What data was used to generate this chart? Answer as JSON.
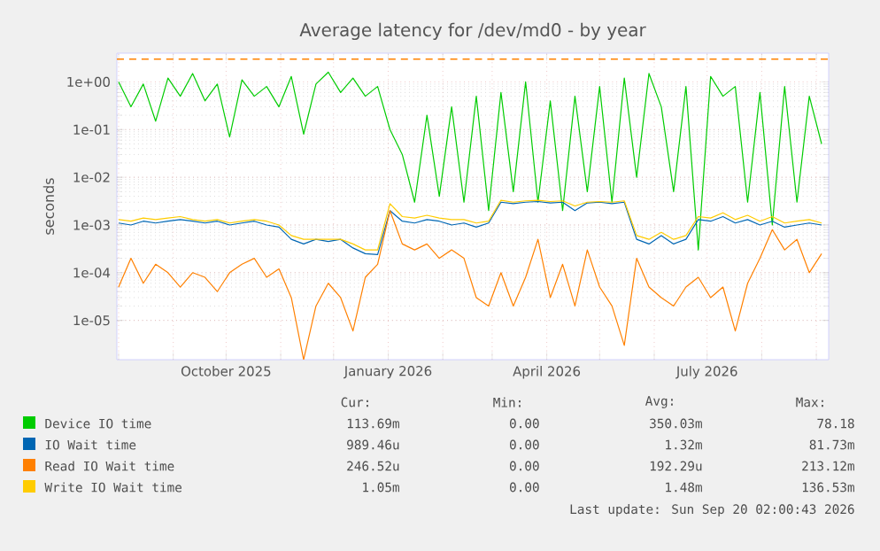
{
  "chart_data": {
    "type": "line",
    "title": "Average latency for /dev/md0 - by year",
    "ylabel": "seconds",
    "x": [
      "2025-08-01",
      "2025-08-08",
      "2025-08-15",
      "2025-08-22",
      "2025-08-29",
      "2025-09-05",
      "2025-09-12",
      "2025-09-19",
      "2025-09-26",
      "2025-10-03",
      "2025-10-10",
      "2025-10-17",
      "2025-10-24",
      "2025-10-31",
      "2025-11-07",
      "2025-11-14",
      "2025-11-21",
      "2025-11-28",
      "2025-12-05",
      "2025-12-12",
      "2025-12-19",
      "2025-12-26",
      "2026-01-02",
      "2026-01-09",
      "2026-01-16",
      "2026-01-23",
      "2026-01-30",
      "2026-02-06",
      "2026-02-13",
      "2026-02-20",
      "2026-02-27",
      "2026-03-06",
      "2026-03-13",
      "2026-03-20",
      "2026-03-27",
      "2026-04-03",
      "2026-04-10",
      "2026-04-17",
      "2026-04-24",
      "2026-05-01",
      "2026-05-08",
      "2026-05-15",
      "2026-05-22",
      "2026-05-29",
      "2026-06-05",
      "2026-06-12",
      "2026-06-19",
      "2026-06-26",
      "2026-07-03",
      "2026-07-10",
      "2026-07-17",
      "2026-07-24",
      "2026-07-31",
      "2026-08-07",
      "2026-08-14",
      "2026-08-21",
      "2026-08-28",
      "2026-09-04"
    ],
    "series": [
      {
        "name": "Device IO time",
        "color": "#00cc00",
        "values": [
          1.0,
          0.3,
          0.9,
          0.15,
          1.2,
          0.5,
          1.5,
          0.4,
          0.9,
          0.07,
          1.1,
          0.5,
          0.8,
          0.3,
          1.3,
          0.08,
          0.9,
          1.6,
          0.6,
          1.2,
          0.5,
          0.8,
          0.1,
          0.03,
          0.003,
          0.2,
          0.004,
          0.3,
          0.003,
          0.5,
          0.002,
          0.6,
          0.005,
          1.0,
          0.003,
          0.4,
          0.002,
          0.5,
          0.005,
          0.8,
          0.003,
          1.2,
          0.01,
          1.5,
          0.3,
          0.005,
          0.8,
          0.0003,
          1.3,
          0.5,
          0.8,
          0.003,
          0.6,
          0.001,
          0.8,
          0.003,
          0.5,
          0.05
        ]
      },
      {
        "name": "IO Wait time",
        "color": "#0066b3",
        "values": [
          0.0011,
          0.001,
          0.0012,
          0.0011,
          0.0012,
          0.0013,
          0.0012,
          0.0011,
          0.0012,
          0.001,
          0.0011,
          0.0012,
          0.001,
          0.0009,
          0.0005,
          0.0004,
          0.0005,
          0.00045,
          0.0005,
          0.00033,
          0.00025,
          0.00024,
          0.002,
          0.0012,
          0.0011,
          0.0013,
          0.0012,
          0.001,
          0.0011,
          0.0009,
          0.0011,
          0.003,
          0.0028,
          0.003,
          0.0031,
          0.0029,
          0.003,
          0.002,
          0.0029,
          0.003,
          0.0028,
          0.003,
          0.0005,
          0.0004,
          0.0006,
          0.0004,
          0.0005,
          0.0013,
          0.0012,
          0.0015,
          0.0011,
          0.0013,
          0.001,
          0.0012,
          0.0009,
          0.001,
          0.0011,
          0.001
        ]
      },
      {
        "name": "Read IO Wait time",
        "color": "#ff8000",
        "values": [
          5e-05,
          0.0002,
          6e-05,
          0.00015,
          0.0001,
          5e-05,
          0.0001,
          8e-05,
          4e-05,
          0.0001,
          0.00015,
          0.0002,
          8e-05,
          0.00012,
          3e-05,
          1.5e-06,
          2e-05,
          6e-05,
          3e-05,
          6e-06,
          8e-05,
          0.00015,
          0.002,
          0.0004,
          0.0003,
          0.0004,
          0.0002,
          0.0003,
          0.0002,
          3e-05,
          2e-05,
          0.0001,
          2e-05,
          8e-05,
          0.0005,
          3e-05,
          0.00015,
          2e-05,
          0.0003,
          5e-05,
          2e-05,
          3e-06,
          0.0002,
          5e-05,
          3e-05,
          2e-05,
          5e-05,
          8e-05,
          3e-05,
          5e-05,
          6e-06,
          6e-05,
          0.0002,
          0.0008,
          0.0003,
          0.0005,
          0.0001,
          0.00025
        ]
      },
      {
        "name": "Write IO Wait time",
        "color": "#ffcc00",
        "values": [
          0.0013,
          0.0012,
          0.0014,
          0.0013,
          0.0014,
          0.0015,
          0.0013,
          0.0012,
          0.0013,
          0.0011,
          0.0012,
          0.0013,
          0.0012,
          0.001,
          0.0006,
          0.0005,
          0.0005,
          0.0005,
          0.0005,
          0.0004,
          0.0003,
          0.0003,
          0.0028,
          0.0015,
          0.0014,
          0.0016,
          0.0014,
          0.0013,
          0.0013,
          0.0011,
          0.0012,
          0.0033,
          0.003,
          0.0032,
          0.0033,
          0.0031,
          0.0032,
          0.0025,
          0.003,
          0.0031,
          0.003,
          0.0032,
          0.0006,
          0.0005,
          0.0007,
          0.0005,
          0.0006,
          0.0015,
          0.0014,
          0.0018,
          0.0013,
          0.0016,
          0.0012,
          0.0015,
          0.0011,
          0.0012,
          0.0013,
          0.0011
        ]
      }
    ],
    "log": "y",
    "ylim": [
      1.5e-06,
      4
    ],
    "yticks": [
      {
        "value": 1e-05,
        "label": "1e-05"
      },
      {
        "value": 0.0001,
        "label": "1e-04"
      },
      {
        "value": 0.001,
        "label": "1e-03"
      },
      {
        "value": 0.01,
        "label": "1e-02"
      },
      {
        "value": 0.1,
        "label": "1e-01"
      },
      {
        "value": 1,
        "label": "1e+00"
      }
    ],
    "xlim": [
      "2025-07-31",
      "2026-09-08"
    ],
    "xticks": [
      {
        "value": "2025-08-01",
        "label": null
      },
      {
        "value": "2025-09-01",
        "label": null
      },
      {
        "value": "2025-10-01",
        "label": "October 2025"
      },
      {
        "value": "2025-11-01",
        "label": null
      },
      {
        "value": "2025-12-01",
        "label": null
      },
      {
        "value": "2026-01-01",
        "label": "January 2026"
      },
      {
        "value": "2026-02-01",
        "label": null
      },
      {
        "value": "2026-03-01",
        "label": null
      },
      {
        "value": "2026-04-01",
        "label": "April 2026"
      },
      {
        "value": "2026-05-01",
        "label": null
      },
      {
        "value": "2026-06-01",
        "label": null
      },
      {
        "value": "2026-07-01",
        "label": "July 2026"
      },
      {
        "value": "2026-08-01",
        "label": null
      },
      {
        "value": "2026-09-01",
        "label": null
      }
    ],
    "ref_lines": [
      {
        "axis": "y",
        "value": 3,
        "color": "#ff8000",
        "line_style": "dashed"
      }
    ],
    "grid": true,
    "legend": "bottom",
    "marker": "none",
    "line_style": "solid",
    "annotations": [
      "Cur:",
      "Min:",
      "Avg:",
      "Max:",
      "113.69m",
      "0.00",
      "350.03m",
      "78.18",
      "989.46u",
      "0.00",
      "1.32m",
      "81.73m",
      "246.52u",
      "0.00",
      "192.29u",
      "213.12m",
      "1.05m",
      "0.00",
      "1.48m",
      "136.53m",
      "Last update: Sun Sep 20 02:00:43 2026"
    ]
  }
}
